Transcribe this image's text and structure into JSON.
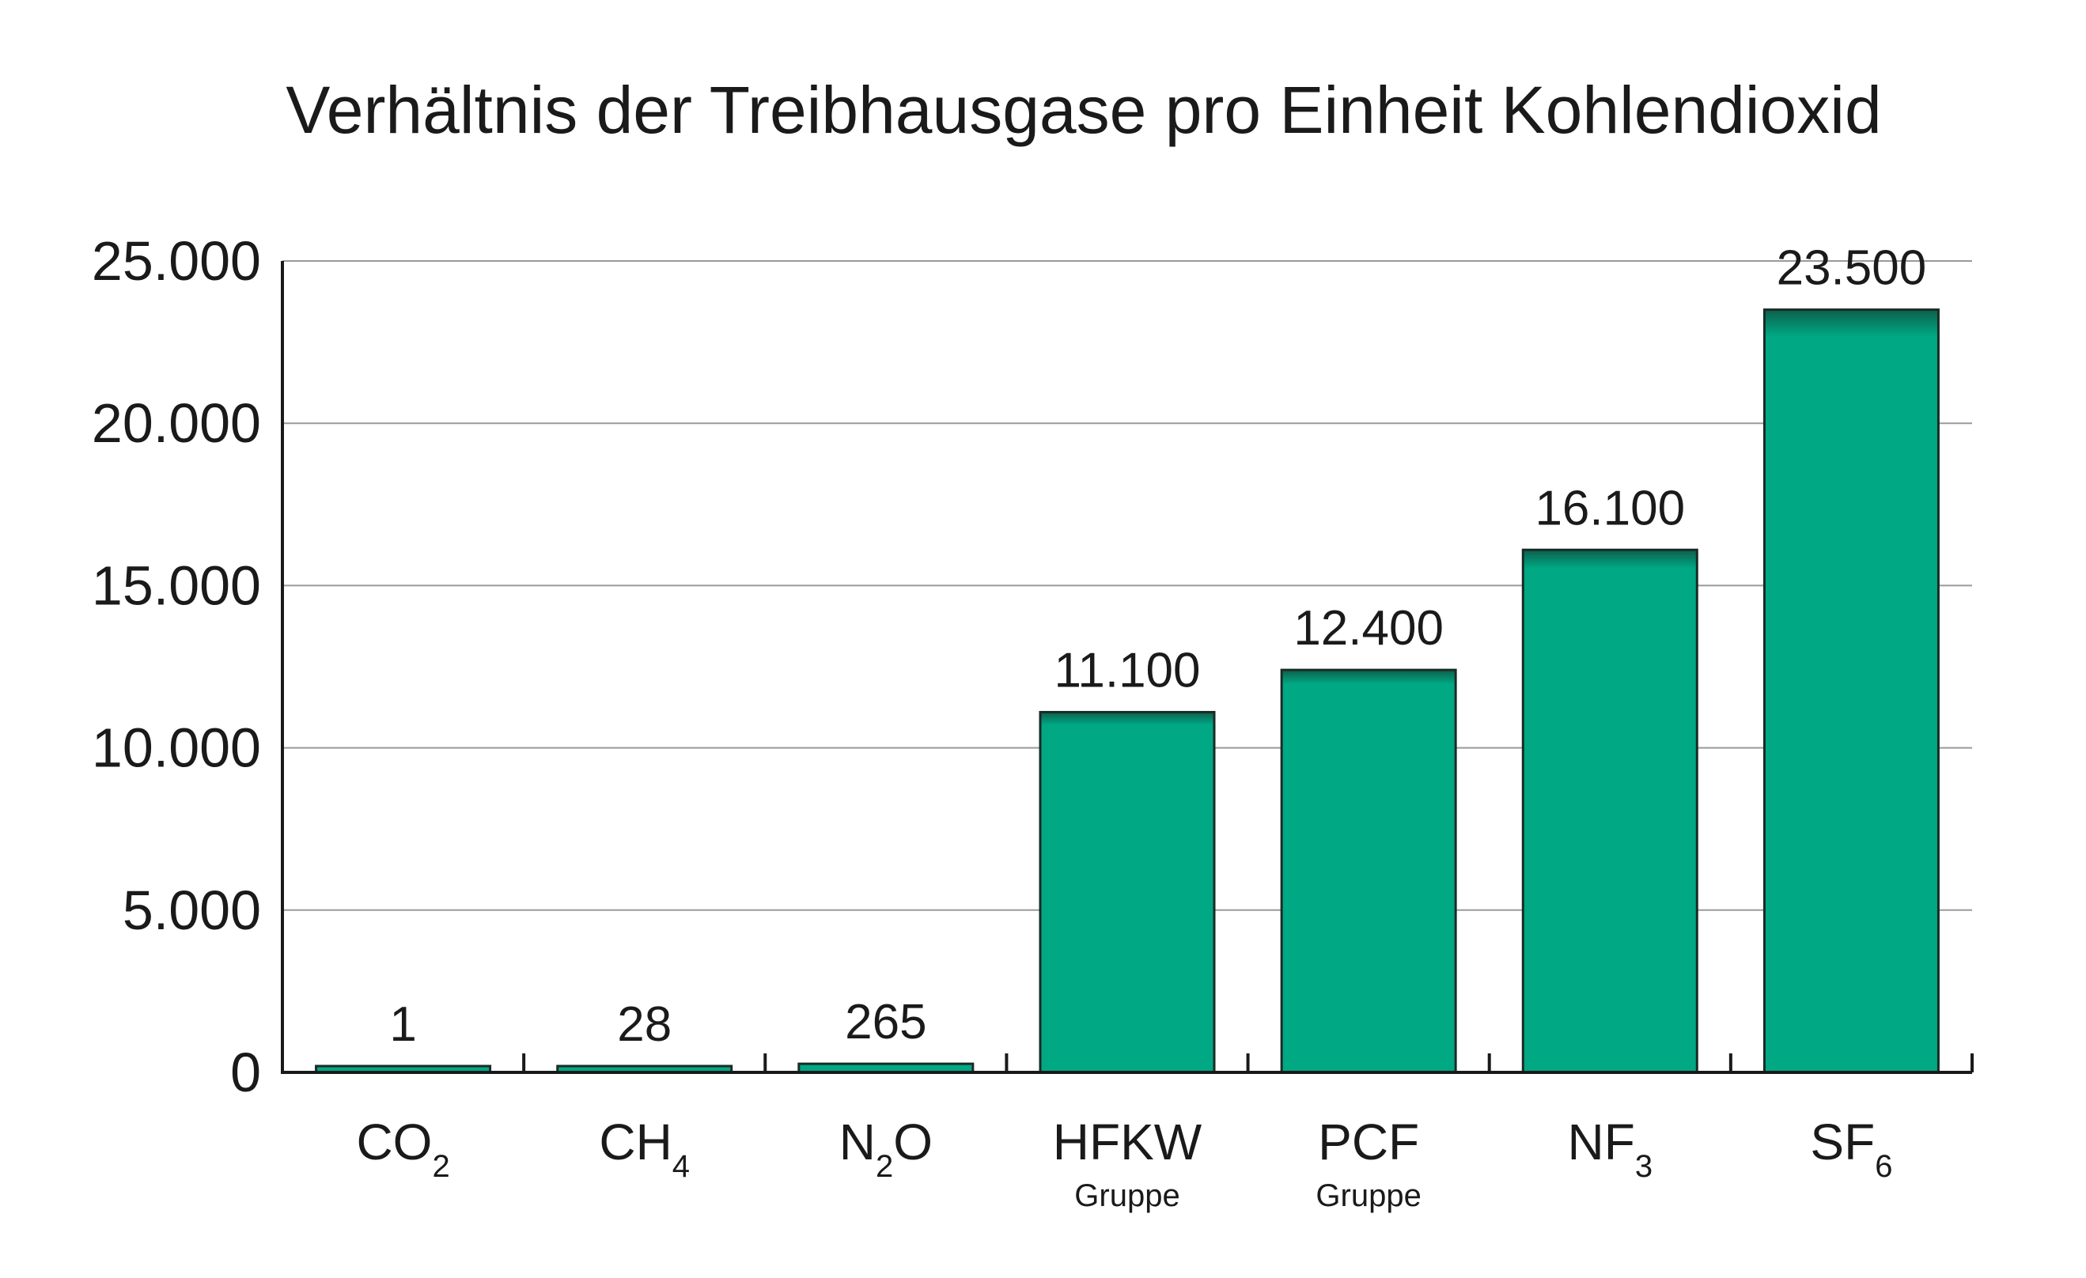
{
  "chart_data": {
    "type": "bar",
    "title": "Verhältnis der Treibhausgase pro Einheit Kohlendioxid",
    "xlabel": "",
    "ylabel": "",
    "ylim": [
      0,
      25000
    ],
    "yticks": [
      0,
      5000,
      10000,
      15000,
      20000,
      25000
    ],
    "ytick_labels": [
      "0",
      "5.000",
      "10.000",
      "15.000",
      "20.000",
      "25.000"
    ],
    "grid": true,
    "legend": false,
    "categories": [
      {
        "main": "CO",
        "sub": "2",
        "sublabel": ""
      },
      {
        "main": "CH",
        "sub": "4",
        "sublabel": ""
      },
      {
        "main": "N",
        "sub": "2",
        "tail": "O",
        "sublabel": ""
      },
      {
        "main": "HFKW",
        "sub": "",
        "sublabel": "Gruppe"
      },
      {
        "main": "PCF",
        "sub": "",
        "sublabel": "Gruppe"
      },
      {
        "main": "NF",
        "sub": "3",
        "sublabel": ""
      },
      {
        "main": "SF",
        "sub": "6",
        "sublabel": ""
      }
    ],
    "values": [
      1,
      28,
      265,
      11100,
      12400,
      16100,
      23500
    ],
    "value_labels": [
      "1",
      "28",
      "265",
      "11.100",
      "12.400",
      "16.100",
      "23.500"
    ],
    "colors": {
      "bar_fill": "#00a884",
      "bar_top_shade": "#0d5f4c",
      "bar_stroke": "#1a2b26",
      "grid": "#9a9a9a",
      "axis": "#1a1a1a",
      "text": "#1a1a1a"
    }
  }
}
